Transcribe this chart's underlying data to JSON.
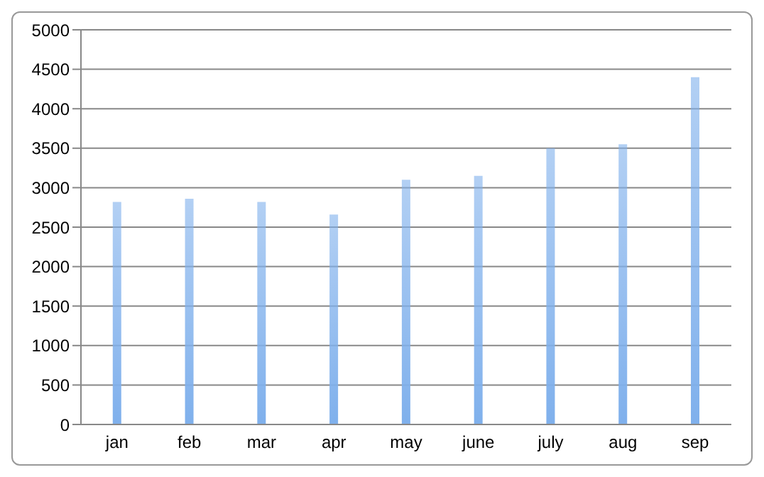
{
  "chart_data": {
    "type": "bar",
    "categories": [
      "jan",
      "feb",
      "mar",
      "apr",
      "may",
      "june",
      "july",
      "aug",
      "sep"
    ],
    "values": [
      2820,
      2860,
      2820,
      2660,
      3100,
      3150,
      3500,
      3550,
      4400
    ],
    "color": "#7fb0ec",
    "ylim": [
      0,
      5000
    ],
    "yticks": [
      0,
      500,
      1000,
      1500,
      2000,
      2500,
      3000,
      3500,
      4000,
      4500,
      5000
    ],
    "grid": "y",
    "legend": false
  }
}
